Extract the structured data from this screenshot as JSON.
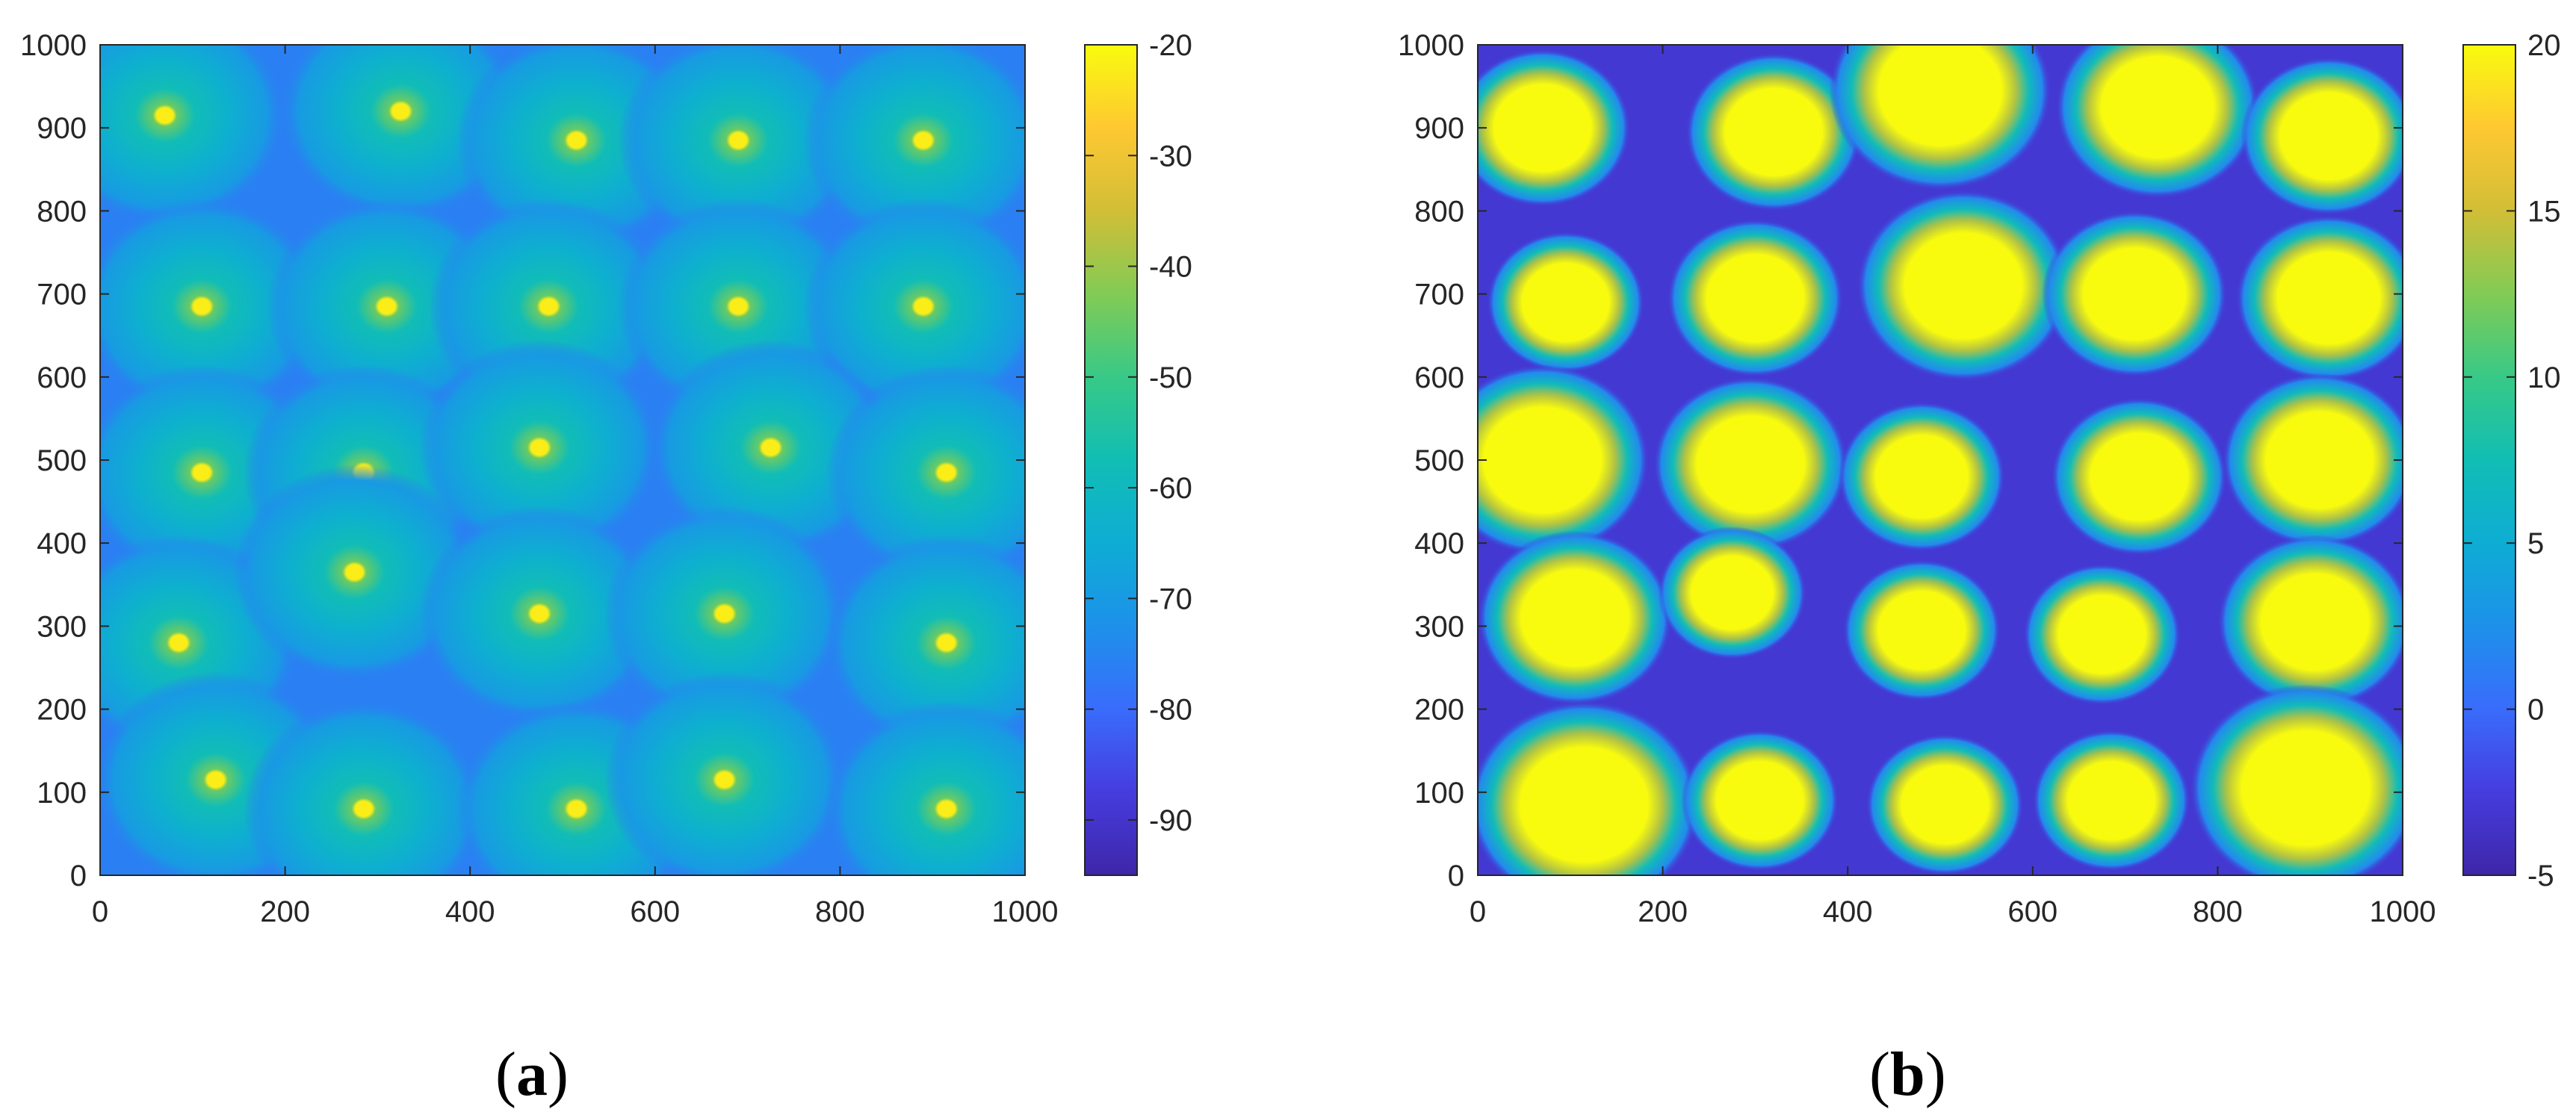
{
  "chart_data": [
    {
      "type": "heatmap",
      "panel_label": "a",
      "x_ticks": [
        0,
        200,
        400,
        600,
        800,
        1000
      ],
      "y_ticks": [
        0,
        100,
        200,
        300,
        400,
        500,
        600,
        700,
        800,
        900,
        1000
      ],
      "xlim": [
        0,
        1000
      ],
      "ylim": [
        0,
        1000
      ],
      "color_range": [
        -95,
        -20
      ],
      "colorbar_ticks": [
        -20,
        -30,
        -40,
        -50,
        -60,
        -70,
        -80,
        -90
      ],
      "colormap": "parula",
      "grid": false,
      "background_value": -76,
      "peak_value": -22,
      "spot_radius": 130,
      "spots": [
        {
          "x": 70,
          "y": 915
        },
        {
          "x": 325,
          "y": 920
        },
        {
          "x": 515,
          "y": 885
        },
        {
          "x": 690,
          "y": 885
        },
        {
          "x": 890,
          "y": 885
        },
        {
          "x": 110,
          "y": 685
        },
        {
          "x": 310,
          "y": 685
        },
        {
          "x": 485,
          "y": 685
        },
        {
          "x": 690,
          "y": 685
        },
        {
          "x": 890,
          "y": 685
        },
        {
          "x": 110,
          "y": 485
        },
        {
          "x": 285,
          "y": 485
        },
        {
          "x": 475,
          "y": 515
        },
        {
          "x": 725,
          "y": 515
        },
        {
          "x": 915,
          "y": 485
        },
        {
          "x": 85,
          "y": 280
        },
        {
          "x": 275,
          "y": 365
        },
        {
          "x": 475,
          "y": 315
        },
        {
          "x": 675,
          "y": 315
        },
        {
          "x": 915,
          "y": 280
        },
        {
          "x": 125,
          "y": 115
        },
        {
          "x": 285,
          "y": 80
        },
        {
          "x": 515,
          "y": 80
        },
        {
          "x": 675,
          "y": 115
        },
        {
          "x": 915,
          "y": 80
        }
      ]
    },
    {
      "type": "heatmap",
      "panel_label": "b",
      "x_ticks": [
        0,
        200,
        400,
        600,
        800,
        1000
      ],
      "y_ticks": [
        0,
        100,
        200,
        300,
        400,
        500,
        600,
        700,
        800,
        900,
        1000
      ],
      "xlim": [
        0,
        1000
      ],
      "ylim": [
        0,
        1000
      ],
      "color_range": [
        -5,
        20
      ],
      "colorbar_ticks": [
        20,
        15,
        10,
        5,
        0,
        -5
      ],
      "colormap": "parula",
      "grid": false,
      "background_value": -3,
      "peak_value": 20,
      "spots": [
        {
          "x": 70,
          "y": 900,
          "r": 95
        },
        {
          "x": 320,
          "y": 895,
          "r": 95
        },
        {
          "x": 500,
          "y": 945,
          "r": 120
        },
        {
          "x": 735,
          "y": 925,
          "r": 110
        },
        {
          "x": 920,
          "y": 890,
          "r": 95
        },
        {
          "x": 95,
          "y": 690,
          "r": 85
        },
        {
          "x": 300,
          "y": 695,
          "r": 95
        },
        {
          "x": 525,
          "y": 710,
          "r": 115
        },
        {
          "x": 710,
          "y": 700,
          "r": 100
        },
        {
          "x": 920,
          "y": 695,
          "r": 100
        },
        {
          "x": 70,
          "y": 500,
          "r": 115
        },
        {
          "x": 295,
          "y": 495,
          "r": 105
        },
        {
          "x": 480,
          "y": 480,
          "r": 90
        },
        {
          "x": 715,
          "y": 480,
          "r": 95
        },
        {
          "x": 910,
          "y": 500,
          "r": 105
        },
        {
          "x": 105,
          "y": 310,
          "r": 105
        },
        {
          "x": 275,
          "y": 340,
          "r": 80
        },
        {
          "x": 480,
          "y": 295,
          "r": 85
        },
        {
          "x": 675,
          "y": 290,
          "r": 85
        },
        {
          "x": 905,
          "y": 305,
          "r": 105
        },
        {
          "x": 115,
          "y": 85,
          "r": 125
        },
        {
          "x": 305,
          "y": 90,
          "r": 85
        },
        {
          "x": 505,
          "y": 85,
          "r": 85
        },
        {
          "x": 685,
          "y": 90,
          "r": 85
        },
        {
          "x": 895,
          "y": 105,
          "r": 125
        }
      ]
    }
  ]
}
